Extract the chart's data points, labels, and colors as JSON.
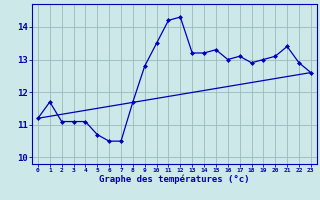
{
  "xlabel": "Graphe des températures (°c)",
  "hours": [
    0,
    1,
    2,
    3,
    4,
    5,
    6,
    7,
    8,
    9,
    10,
    11,
    12,
    13,
    14,
    15,
    16,
    17,
    18,
    19,
    20,
    21,
    22,
    23
  ],
  "temp_curve": [
    11.2,
    11.7,
    11.1,
    11.1,
    11.1,
    10.7,
    10.5,
    10.5,
    11.7,
    12.8,
    13.5,
    14.2,
    14.3,
    13.2,
    13.2,
    13.3,
    13.0,
    13.1,
    12.9,
    13.0,
    13.1,
    13.4,
    12.9,
    12.6
  ],
  "trend_start": 11.2,
  "trend_end": 12.6,
  "ylim": [
    9.8,
    14.7
  ],
  "xlim": [
    -0.5,
    23.5
  ],
  "bg_color": "#cce8e8",
  "grid_color": "#99bbbb",
  "line_color": "#0000bb",
  "tick_color": "#0000bb",
  "label_color": "#0000bb",
  "yticks": [
    10,
    11,
    12,
    13,
    14
  ]
}
